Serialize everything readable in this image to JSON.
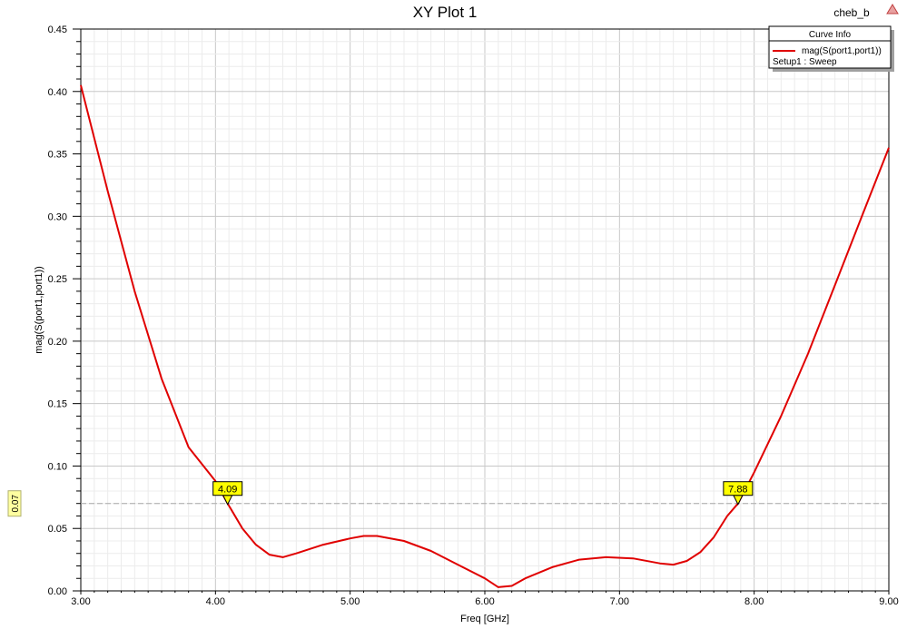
{
  "window": {
    "title": "XY Plot 1",
    "design_name": "cheb_b"
  },
  "legend": {
    "header": "Curve Info",
    "entries": [
      {
        "label": "mag(S(port1,port1))",
        "sublabel": "Setup1 : Sweep",
        "color": "#e00000"
      }
    ],
    "placement": "top-right"
  },
  "chart_data": {
    "type": "line",
    "title": "XY Plot 1",
    "xlabel": "Freq [GHz]",
    "ylabel": "mag(S(port1,port1))",
    "xlim": [
      3.0,
      9.0
    ],
    "ylim": [
      0.0,
      0.45
    ],
    "grid": true,
    "x_ticks": [
      "3.00",
      "4.00",
      "5.00",
      "6.00",
      "7.00",
      "8.00",
      "9.00"
    ],
    "y_ticks": [
      "0.00",
      "0.05",
      "0.10",
      "0.15",
      "0.20",
      "0.25",
      "0.30",
      "0.35",
      "0.40",
      "0.45"
    ],
    "series": [
      {
        "name": "mag(S(port1,port1))",
        "color": "#e00000",
        "x": [
          3.0,
          3.2,
          3.4,
          3.6,
          3.8,
          4.0,
          4.09,
          4.2,
          4.3,
          4.4,
          4.5,
          4.6,
          4.8,
          5.0,
          5.1,
          5.2,
          5.4,
          5.6,
          5.8,
          6.0,
          6.1,
          6.2,
          6.3,
          6.5,
          6.7,
          6.9,
          7.1,
          7.3,
          7.4,
          7.5,
          7.6,
          7.7,
          7.8,
          7.88,
          8.0,
          8.2,
          8.4,
          8.6,
          8.8,
          9.0
        ],
        "y": [
          0.405,
          0.32,
          0.24,
          0.17,
          0.115,
          0.088,
          0.07,
          0.05,
          0.037,
          0.029,
          0.027,
          0.03,
          0.037,
          0.042,
          0.044,
          0.044,
          0.04,
          0.032,
          0.021,
          0.01,
          0.003,
          0.004,
          0.01,
          0.019,
          0.025,
          0.027,
          0.026,
          0.022,
          0.021,
          0.024,
          0.031,
          0.043,
          0.06,
          0.07,
          0.095,
          0.14,
          0.19,
          0.245,
          0.3,
          0.355
        ]
      }
    ],
    "markers": [
      {
        "label": "4.09",
        "x": 4.09,
        "y": 0.07
      },
      {
        "label": "7.88",
        "x": 7.88,
        "y": 0.07
      }
    ],
    "reference_line": {
      "y": 0.07,
      "label": "0.07"
    }
  }
}
